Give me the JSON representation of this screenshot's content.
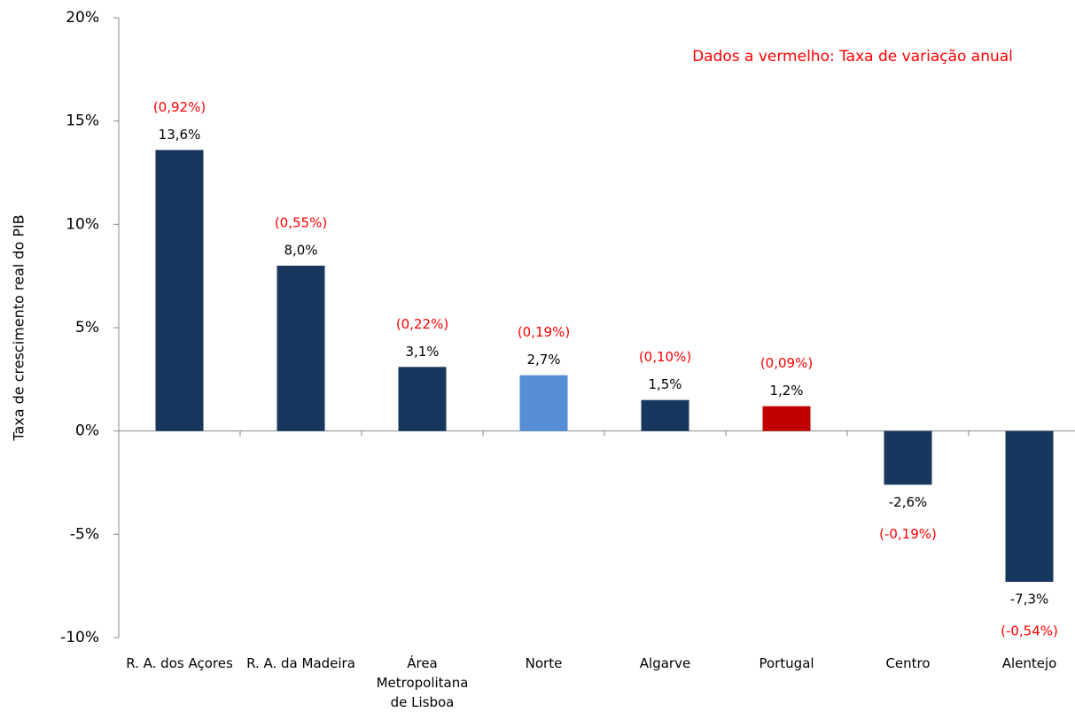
{
  "chart_data": {
    "type": "bar",
    "annotation": "Dados a vermelho: Taxa de variação anual",
    "y_label": "Taxa de crescimento real do PIB",
    "categories": [
      "R. A. dos Açores",
      "R. A. da Madeira",
      "Área Metropolitana de Lisboa",
      "Norte",
      "Algarve",
      "Portugal",
      "Centro",
      "Alentejo"
    ],
    "values": [
      13.6,
      8.0,
      3.1,
      2.7,
      1.5,
      1.2,
      -2.6,
      -7.3
    ],
    "value_labels": [
      "13,6%",
      "8,0%",
      "3,1%",
      "2,7%",
      "1,5%",
      "1,2%",
      "-2,6%",
      "-7,3%"
    ],
    "annual_change_labels": [
      "(0,92%)",
      "(0,55%)",
      "(0,22%)",
      "(0,19%)",
      "(0,10%)",
      "(0,09%)",
      "(-0,19%)",
      "(-0,54%)"
    ],
    "colors": [
      "#17375e",
      "#17375e",
      "#17375e",
      "#558ed5",
      "#17375e",
      "#c00000",
      "#17375e",
      "#17375e"
    ],
    "annotation_color": "#ff0000",
    "ylim": [
      -10,
      20
    ],
    "yticks": [
      {
        "value": -10,
        "label": "-10%"
      },
      {
        "value": -5,
        "label": "-5%"
      },
      {
        "value": 0,
        "label": "0%"
      },
      {
        "value": 5,
        "label": "5%"
      },
      {
        "value": 10,
        "label": "10%"
      },
      {
        "value": 15,
        "label": "15%"
      },
      {
        "value": 20,
        "label": "20%"
      }
    ]
  }
}
